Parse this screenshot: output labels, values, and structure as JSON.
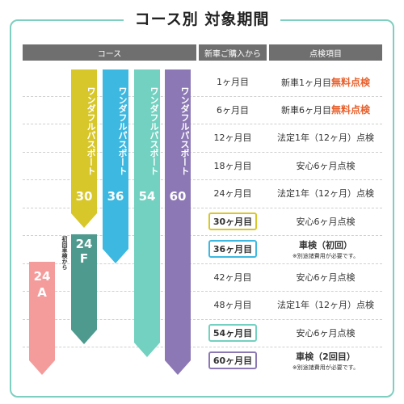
{
  "title": "コース別 対象期間",
  "headers": {
    "course": "コース",
    "purchase": "新車ご購入から",
    "item": "点検項目"
  },
  "courses": [
    {
      "id": "30",
      "text": "ワンダフルパスポート",
      "number": "30",
      "color": "#d8c72a"
    },
    {
      "id": "36",
      "text": "ワンダフルパスポート",
      "number": "36",
      "color": "#3db8e0"
    },
    {
      "id": "54",
      "text": "ワンダフルパスポート",
      "number": "54",
      "color": "#72d1c0"
    },
    {
      "id": "60",
      "text": "ワンダフルパスポート",
      "number": "60",
      "color": "#8c78b5"
    },
    {
      "id": "24F",
      "number_line1": "24",
      "number_line2": "F",
      "color": "#4e9a8e"
    },
    {
      "id": "24A",
      "number_line1": "24",
      "number_line2": "A",
      "color": "#f49c9c"
    }
  ],
  "side_note": "初回車検から",
  "rows": [
    {
      "month": "1ヶ月目",
      "item": "新車1ヶ月目",
      "highlight": "無料点検"
    },
    {
      "month": "6ヶ月目",
      "item": "新車6ヶ月目",
      "highlight": "無料点検"
    },
    {
      "month": "12ヶ月目",
      "item": "法定1年（12ヶ月）点検"
    },
    {
      "month": "18ヶ月目",
      "item": "安心6ヶ月点検"
    },
    {
      "month": "24ヶ月目",
      "item": "法定1年（12ヶ月）点検"
    },
    {
      "month": "30ヶ月目",
      "item": "安心6ヶ月点検",
      "box_color": "#d8c72a"
    },
    {
      "month": "36ヶ月目",
      "item": "車検（初回）",
      "note": "※別途諸費用が必要です。",
      "box_color": "#3db8e0"
    },
    {
      "month": "42ヶ月目",
      "item": "安心6ヶ月点検"
    },
    {
      "month": "48ヶ月目",
      "item": "法定1年（12ヶ月）点検"
    },
    {
      "month": "54ヶ月目",
      "item": "安心6ヶ月点検",
      "box_color": "#72d1c0"
    },
    {
      "month": "60ヶ月目",
      "item": "車検（2回目）",
      "note": "※別途諸費用が必要です。",
      "box_color": "#8c78b5"
    }
  ]
}
